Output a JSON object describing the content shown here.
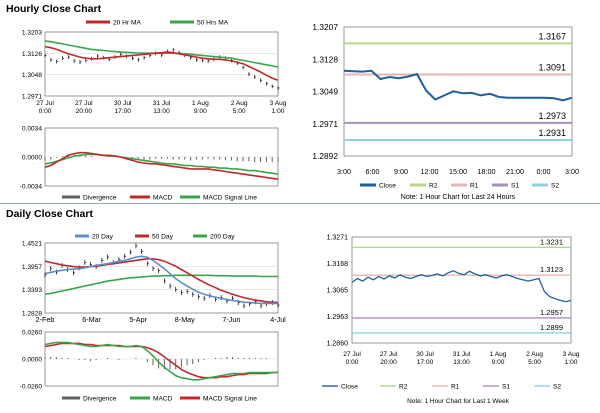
{
  "sections": {
    "hourly_title": "Hourly Close Chart",
    "daily_title": "Daily Close Chart"
  },
  "colors": {
    "close": "#1f5f9f",
    "ma_short": "#c0282c",
    "ma_long": "#3aa54b",
    "ma_20day": "#5b8fc8",
    "r2": "#b7d68a",
    "r1": "#e5b7b4",
    "s1": "#a78fc0",
    "s2": "#8fd0e3",
    "ohlc": "#000000",
    "hist": "#606060"
  },
  "chart_data": [
    {
      "id": "hourly-price",
      "type": "line",
      "title": "Hourly Close Chart",
      "legend": [
        "20 Hr MA",
        "50 Hrs MA"
      ],
      "x_tick_labels": [
        [
          "27 Jul",
          "0:00"
        ],
        [
          "27 Jul",
          "20:00"
        ],
        [
          "30 Jul",
          "17:00"
        ],
        [
          "31 Jul",
          "13:00"
        ],
        [
          "1 Aug",
          "9:00"
        ],
        [
          "2 Aug",
          "5:00"
        ],
        [
          "3 Aug",
          "1:00"
        ]
      ],
      "y_tick_labels": [
        "1.3203",
        "1.3126",
        "1.3048",
        "1.2971"
      ],
      "ylim": [
        1.2971,
        1.3203
      ],
      "series": [
        {
          "name": "Close",
          "values": [
            1.3118,
            1.3102,
            1.3096,
            1.3108,
            1.3112,
            1.3098,
            1.3094,
            1.31,
            1.3106,
            1.3116,
            1.311,
            1.3104,
            1.3112,
            1.3122,
            1.3115,
            1.3108,
            1.3102,
            1.311,
            1.3118,
            1.3126,
            1.312,
            1.3132,
            1.3138,
            1.3128,
            1.3118,
            1.311,
            1.3102,
            1.31,
            1.3098,
            1.3104,
            1.3112,
            1.3108,
            1.31,
            1.309,
            1.3075,
            1.305,
            1.304,
            1.3028,
            1.3016,
            1.3006,
            1.3
          ]
        },
        {
          "name": "20 Hr MA",
          "values": [
            1.315,
            1.3146,
            1.314,
            1.3132,
            1.3124,
            1.3118,
            1.3112,
            1.3108,
            1.3106,
            1.3106,
            1.3108,
            1.311,
            1.3112,
            1.3114,
            1.3116,
            1.3118,
            1.312,
            1.3122,
            1.3124,
            1.3126,
            1.3128,
            1.313,
            1.3128,
            1.3124,
            1.312,
            1.3116,
            1.3112,
            1.3108,
            1.3106,
            1.3104,
            1.3104,
            1.3102,
            1.3098,
            1.3094,
            1.3088,
            1.3078,
            1.3068,
            1.3058,
            1.3046,
            1.3036,
            1.3028
          ]
        },
        {
          "name": "50 Hrs MA",
          "values": [
            1.317,
            1.3168,
            1.3164,
            1.316,
            1.3156,
            1.3152,
            1.3148,
            1.3144,
            1.314,
            1.3138,
            1.3136,
            1.3134,
            1.3132,
            1.313,
            1.3129,
            1.3128,
            1.3127,
            1.3126,
            1.3126,
            1.3126,
            1.3126,
            1.3126,
            1.3126,
            1.3125,
            1.3124,
            1.3122,
            1.312,
            1.3118,
            1.3116,
            1.3114,
            1.3112,
            1.311,
            1.3108,
            1.3104,
            1.31,
            1.3096,
            1.3092,
            1.3088,
            1.3084,
            1.308,
            1.3076
          ]
        }
      ]
    },
    {
      "id": "hourly-macd",
      "type": "line",
      "legend": [
        "Divergence",
        "MACD",
        "MACD Signal Line"
      ],
      "y_tick_labels": [
        "0.0034",
        "0.0000",
        "-0.0034"
      ],
      "ylim": [
        -0.0034,
        0.0034
      ],
      "series": [
        {
          "name": "MACD",
          "values": [
            -0.0012,
            -0.001,
            -0.0006,
            -0.0002,
            0.0002,
            0.0004,
            0.0005,
            0.0005,
            0.0004,
            0.0003,
            0.0002,
            0.0002,
            0.0001,
            0.0,
            -0.0002,
            -0.0004,
            -0.0006,
            -0.0007,
            -0.0008,
            -0.0008,
            -0.0009,
            -0.001,
            -0.0011,
            -0.0012,
            -0.0013,
            -0.0014,
            -0.0014,
            -0.0014,
            -0.0014,
            -0.0015,
            -0.0016,
            -0.0017,
            -0.0018,
            -0.0019,
            -0.002,
            -0.0021,
            -0.0022,
            -0.0023,
            -0.0024,
            -0.0025,
            -0.0026
          ]
        },
        {
          "name": "MACD Signal Line",
          "values": [
            -0.0008,
            -0.0007,
            -0.0005,
            -0.0003,
            -0.0001,
            0.0001,
            0.0002,
            0.0003,
            0.0003,
            0.0003,
            0.0002,
            0.0001,
            0.0001,
            0.0,
            -0.0001,
            -0.0002,
            -0.0003,
            -0.0004,
            -0.0005,
            -0.0006,
            -0.0007,
            -0.0008,
            -0.0008,
            -0.0009,
            -0.001,
            -0.001,
            -0.0011,
            -0.0011,
            -0.0012,
            -0.0012,
            -0.0013,
            -0.0013,
            -0.0014,
            -0.0014,
            -0.0015,
            -0.0016,
            -0.0016,
            -0.0017,
            -0.0018,
            -0.0019,
            -0.002
          ]
        },
        {
          "name": "Divergence",
          "values": [
            -0.0004,
            -0.0003,
            -0.0001,
            0.0001,
            0.0003,
            0.0003,
            0.0003,
            0.0002,
            0.0001,
            0.0,
            0.0,
            0.0001,
            0.0,
            0.0,
            -0.0001,
            -0.0002,
            -0.0003,
            -0.0003,
            -0.0003,
            -0.0002,
            -0.0002,
            -0.0002,
            -0.0003,
            -0.0003,
            -0.0003,
            -0.0004,
            -0.0003,
            -0.0003,
            -0.0002,
            -0.0003,
            -0.0003,
            -0.0004,
            -0.0004,
            -0.0005,
            -0.0005,
            -0.0005,
            -0.0006,
            -0.0006,
            -0.0006,
            -0.0006,
            -0.0006
          ]
        }
      ]
    },
    {
      "id": "hourly-pivot",
      "type": "line",
      "x_tick_labels": [
        "3:00",
        "6:00",
        "9:00",
        "12:00",
        "15:00",
        "18:00",
        "21:00",
        "0:00",
        "3:00"
      ],
      "y_tick_labels": [
        "1.3207",
        "1.3128",
        "1.3049",
        "1.2971",
        "1.2892"
      ],
      "ylim": [
        1.2892,
        1.3207
      ],
      "levels": [
        {
          "name": "R2",
          "value": 1.3167,
          "label": "1.3167"
        },
        {
          "name": "R1",
          "value": 1.3091,
          "label": "1.3091"
        },
        {
          "name": "S1",
          "value": 1.2973,
          "label": "1.2973"
        },
        {
          "name": "S2",
          "value": 1.2931,
          "label": "1.2931"
        }
      ],
      "series": [
        {
          "name": "Close",
          "values": [
            1.31,
            1.3099,
            1.3098,
            1.31,
            1.308,
            1.3085,
            1.3082,
            1.3086,
            1.3092,
            1.3052,
            1.303,
            1.304,
            1.305,
            1.3045,
            1.3046,
            1.304,
            1.3044,
            1.3036,
            1.3034,
            1.3034,
            1.3034,
            1.3034,
            1.3034,
            1.3033,
            1.3028,
            1.3034
          ]
        }
      ],
      "legend": [
        "Close",
        "R2",
        "R1",
        "S1",
        "S2"
      ],
      "note": "Note: 1 Hour Chart for Last 24 Hours"
    },
    {
      "id": "daily-price",
      "type": "line",
      "title": "Daily Close Chart",
      "legend": [
        "20 Day",
        "50 Day",
        "200 Day"
      ],
      "x_tick_labels": [
        "2-Feb",
        "6-Mar",
        "5-Apr",
        "8-May",
        "7-Jun",
        "4-Jul"
      ],
      "y_tick_labels": [
        "1.4521",
        "1.3957",
        "1.3393",
        "1.2828"
      ],
      "ylim": [
        1.2828,
        1.4521
      ],
      "series": [
        {
          "name": "Close",
          "values": [
            1.375,
            1.39,
            1.382,
            1.398,
            1.388,
            1.38,
            1.392,
            1.405,
            1.4,
            1.395,
            1.41,
            1.418,
            1.405,
            1.412,
            1.42,
            1.43,
            1.445,
            1.432,
            1.402,
            1.39,
            1.385,
            1.36,
            1.348,
            1.34,
            1.332,
            1.335,
            1.328,
            1.322,
            1.318,
            1.325,
            1.316,
            1.32,
            1.312,
            1.318,
            1.308,
            1.3,
            1.305,
            1.31,
            1.3,
            1.305,
            1.308,
            1.302
          ]
        },
        {
          "name": "20 Day",
          "values": [
            1.378,
            1.381,
            1.384,
            1.386,
            1.388,
            1.389,
            1.39,
            1.392,
            1.395,
            1.398,
            1.4,
            1.402,
            1.405,
            1.408,
            1.41,
            1.414,
            1.418,
            1.42,
            1.418,
            1.41,
            1.4,
            1.39,
            1.378,
            1.366,
            1.356,
            1.348,
            1.34,
            1.333,
            1.328,
            1.324,
            1.321,
            1.318,
            1.315,
            1.313,
            1.311,
            1.309,
            1.308,
            1.307,
            1.306,
            1.306,
            1.306,
            1.306
          ]
        },
        {
          "name": "50 Day",
          "values": [
            1.408,
            1.405,
            1.402,
            1.399,
            1.397,
            1.395,
            1.394,
            1.394,
            1.395,
            1.396,
            1.398,
            1.4,
            1.402,
            1.404,
            1.406,
            1.408,
            1.41,
            1.412,
            1.414,
            1.414,
            1.412,
            1.408,
            1.402,
            1.396,
            1.388,
            1.38,
            1.372,
            1.364,
            1.357,
            1.35,
            1.344,
            1.338,
            1.333,
            1.328,
            1.324,
            1.32,
            1.317,
            1.314,
            1.312,
            1.31,
            1.309,
            1.308
          ]
        },
        {
          "name": "200 Day",
          "values": [
            1.328,
            1.33,
            1.333,
            1.336,
            1.339,
            1.342,
            1.345,
            1.348,
            1.351,
            1.354,
            1.357,
            1.36,
            1.362,
            1.364,
            1.366,
            1.368,
            1.369,
            1.37,
            1.371,
            1.372,
            1.372,
            1.373,
            1.373,
            1.374,
            1.374,
            1.374,
            1.374,
            1.374,
            1.374,
            1.374,
            1.373,
            1.373,
            1.373,
            1.372,
            1.372,
            1.372,
            1.372,
            1.372,
            1.371,
            1.371,
            1.371,
            1.371
          ]
        }
      ]
    },
    {
      "id": "daily-macd",
      "type": "line",
      "legend": [
        "Divergence",
        "MACD",
        "MACD Signal Line"
      ],
      "y_tick_labels": [
        "0.0260",
        "0.0000",
        "-0.0260"
      ],
      "ylim": [
        -0.026,
        0.026
      ],
      "series": [
        {
          "name": "MACD",
          "values": [
            0.014,
            0.015,
            0.016,
            0.016,
            0.016,
            0.015,
            0.014,
            0.013,
            0.012,
            0.012,
            0.013,
            0.014,
            0.013,
            0.012,
            0.012,
            0.012,
            0.013,
            0.012,
            0.008,
            0.003,
            -0.003,
            -0.008,
            -0.012,
            -0.016,
            -0.018,
            -0.019,
            -0.02,
            -0.02,
            -0.019,
            -0.018,
            -0.017,
            -0.016,
            -0.015,
            -0.014,
            -0.014,
            -0.014,
            -0.013,
            -0.013,
            -0.013,
            -0.013,
            -0.013,
            -0.013
          ]
        },
        {
          "name": "MACD Signal Line",
          "values": [
            0.012,
            0.013,
            0.014,
            0.015,
            0.015,
            0.015,
            0.015,
            0.014,
            0.014,
            0.013,
            0.013,
            0.013,
            0.013,
            0.013,
            0.012,
            0.012,
            0.012,
            0.012,
            0.011,
            0.009,
            0.006,
            0.002,
            -0.002,
            -0.006,
            -0.01,
            -0.013,
            -0.015,
            -0.017,
            -0.018,
            -0.018,
            -0.018,
            -0.017,
            -0.017,
            -0.016,
            -0.015,
            -0.015,
            -0.014,
            -0.014,
            -0.014,
            -0.014,
            -0.013,
            -0.013
          ]
        },
        {
          "name": "Divergence",
          "values": [
            0.002,
            0.002,
            0.002,
            0.001,
            0.001,
            0.0,
            -0.001,
            -0.001,
            -0.002,
            -0.001,
            0.0,
            0.001,
            0.0,
            -0.001,
            0.0,
            0.0,
            0.001,
            0.0,
            -0.003,
            -0.006,
            -0.009,
            -0.01,
            -0.01,
            -0.01,
            -0.008,
            -0.006,
            -0.005,
            -0.003,
            -0.001,
            0.0,
            0.001,
            0.001,
            0.002,
            0.002,
            0.001,
            0.001,
            0.001,
            0.001,
            0.001,
            0.001,
            0.0,
            0.0
          ]
        }
      ]
    },
    {
      "id": "weekly-pivot",
      "type": "line",
      "x_tick_labels": [
        [
          "27 Jul",
          "0:00"
        ],
        [
          "27 Jul",
          "20:00"
        ],
        [
          "30 Jul",
          "17:00"
        ],
        [
          "31 Jul",
          "13:00"
        ],
        [
          "1 Aug",
          "9:00"
        ],
        [
          "2 Aug",
          "5:00"
        ],
        [
          "3 Aug",
          "1:00"
        ]
      ],
      "y_tick_labels": [
        "1.3271",
        "1.3168",
        "1.3065",
        "1.2963",
        "1.2860"
      ],
      "ylim": [
        1.286,
        1.3271
      ],
      "levels": [
        {
          "name": "R2",
          "value": 1.3231,
          "label": "1.3231"
        },
        {
          "name": "R1",
          "value": 1.3123,
          "label": "1.3123"
        },
        {
          "name": "S1",
          "value": 1.2957,
          "label": "1.2957"
        },
        {
          "name": "S2",
          "value": 1.2899,
          "label": "1.2899"
        }
      ],
      "series": [
        {
          "name": "Close",
          "values": [
            1.3095,
            1.311,
            1.31,
            1.3115,
            1.3105,
            1.3118,
            1.3108,
            1.312,
            1.3112,
            1.3125,
            1.3115,
            1.311,
            1.3118,
            1.3125,
            1.3118,
            1.3122,
            1.3128,
            1.312,
            1.3132,
            1.314,
            1.313,
            1.3125,
            1.3138,
            1.3128,
            1.312,
            1.3125,
            1.3118,
            1.3112,
            1.312,
            1.3125,
            1.3118,
            1.311,
            1.3105,
            1.31,
            1.3105,
            1.311,
            1.306,
            1.304,
            1.3032,
            1.3025,
            1.302,
            1.3025
          ]
        }
      ],
      "legend": [
        "Close",
        "R2",
        "R1",
        "S1",
        "S2"
      ],
      "note": "Note: 1 Hour Chart for Last 1 Week"
    }
  ]
}
